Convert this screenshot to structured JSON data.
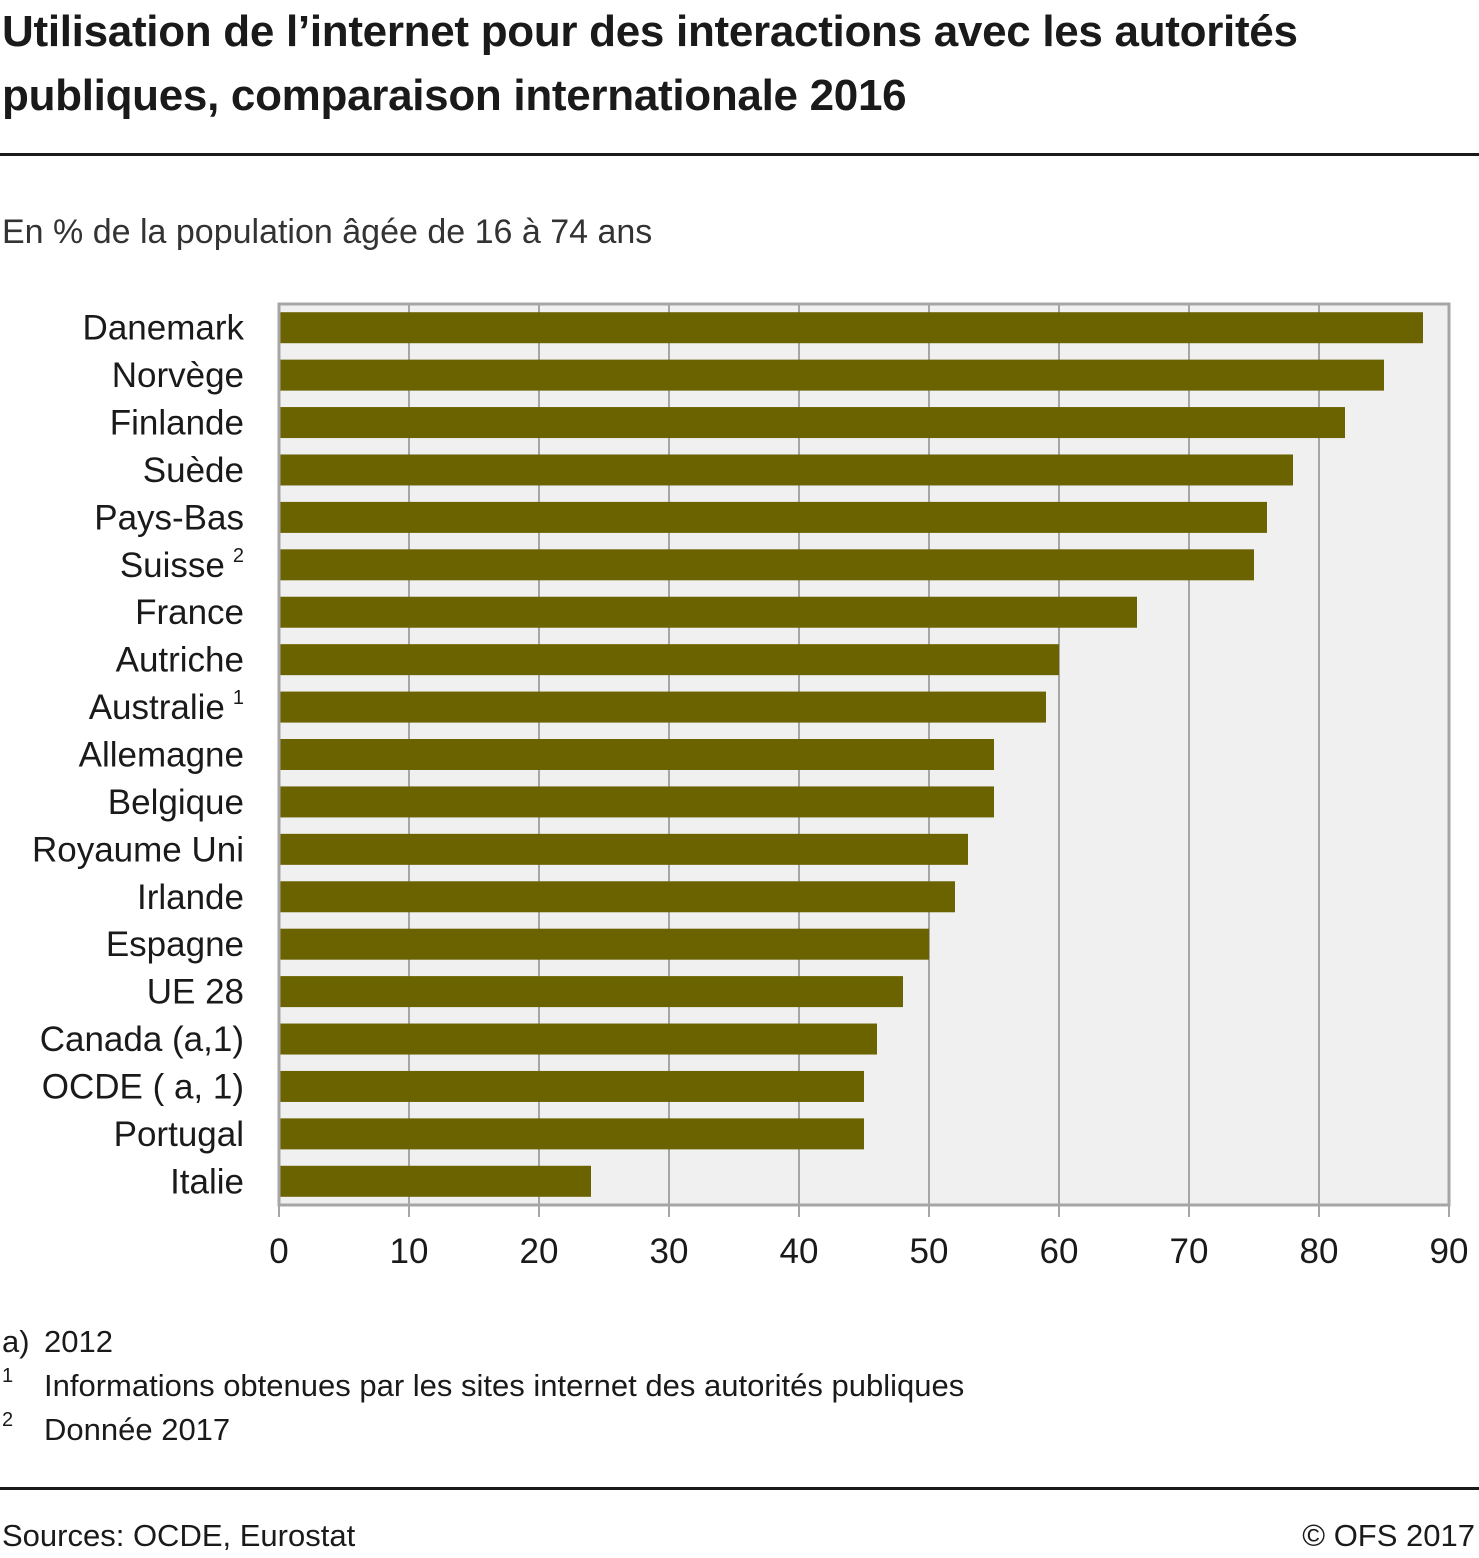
{
  "title": "Utilisation de l’internet pour des interactions avec les autorités publiques, comparaison internationale 2016",
  "subtitle": "En % de la population âgée de 16 à 74 ans",
  "colors": {
    "bar": "#6b6300",
    "plot_bg": "#f0f0f0",
    "grid": "#a6a6a6",
    "frame": "#a6a6a6"
  },
  "chart_data": {
    "type": "bar",
    "orientation": "horizontal",
    "categories": [
      "Danemark",
      "Norvège",
      "Finlande",
      "Suède",
      "Pays-Bas",
      "Suisse",
      "France",
      "Autriche",
      "Australie",
      "Allemagne",
      "Belgique",
      "Royaume Uni",
      "Irlande",
      "Espagne",
      "UE 28",
      "Canada (a,1)",
      "OCDE ( a, 1)",
      "Portugal",
      "Italie"
    ],
    "category_superscripts": [
      "",
      "",
      "",
      "",
      "",
      "2",
      "",
      "",
      "1",
      "",
      "",
      "",
      "",
      "",
      "",
      "",
      "",
      "",
      ""
    ],
    "values": [
      88,
      85,
      82,
      78,
      76,
      75,
      66,
      60,
      59,
      55,
      55,
      53,
      52,
      50,
      48,
      46,
      45,
      45,
      24
    ],
    "xlim": [
      0,
      90
    ],
    "xticks": [
      "0",
      "10",
      "20",
      "30",
      "40",
      "50",
      "60",
      "70",
      "80",
      "90"
    ],
    "grid": true,
    "legend": "none"
  },
  "footnotes": [
    {
      "mark": "a)",
      "text": "2012"
    },
    {
      "mark": "1",
      "text": "Informations obtenues par les sites internet des autorités publiques"
    },
    {
      "mark": "2",
      "text": "Donnée 2017"
    }
  ],
  "source": "Sources: OCDE, Eurostat",
  "copyright": "© OFS 2017"
}
